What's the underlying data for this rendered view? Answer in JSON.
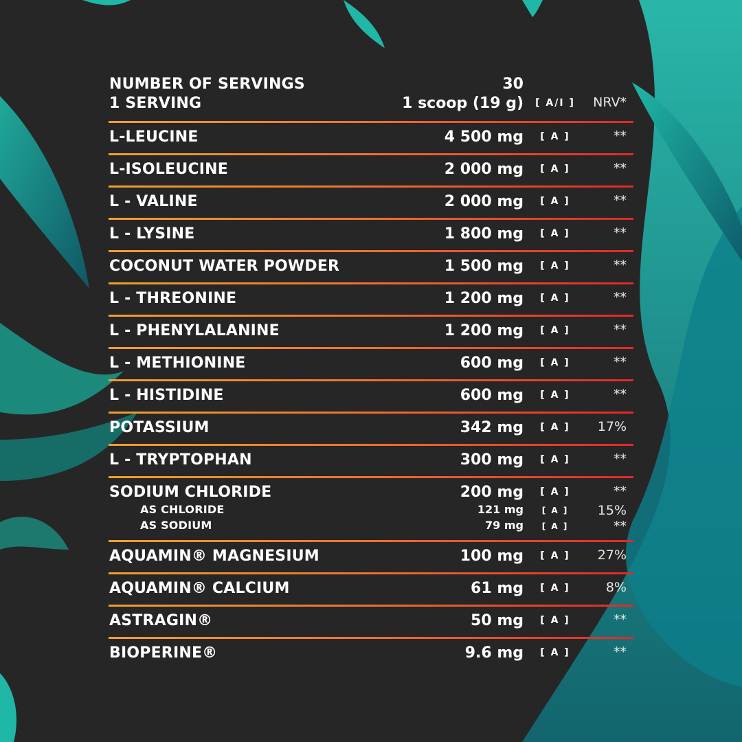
{
  "header": {
    "rows": [
      {
        "name": "NUMBER OF SERVINGS",
        "amount": "30"
      },
      {
        "name": "1 SERVING",
        "amount": "1 scoop (19 g)",
        "source": "[ A/I ]",
        "nrv": "NRV*"
      }
    ]
  },
  "table": {
    "rows": [
      {
        "name": "L-LEUCINE",
        "amount": "4 500 mg",
        "source": "[ A ]",
        "nrv": "**"
      },
      {
        "name": "L-ISOLEUCINE",
        "amount": "2 000 mg",
        "source": "[ A ]",
        "nrv": "**"
      },
      {
        "name": "L - VALINE",
        "amount": "2 000 mg",
        "source": "[ A ]",
        "nrv": "**"
      },
      {
        "name": "L - LYSINE",
        "amount": "1 800 mg",
        "source": "[ A ]",
        "nrv": "**"
      },
      {
        "name": "COCONUT WATER POWDER",
        "amount": "1 500 mg",
        "source": "[ A ]",
        "nrv": "**"
      },
      {
        "name": "L - THREONINE",
        "amount": "1 200 mg",
        "source": "[ A ]",
        "nrv": "**"
      },
      {
        "name": "L - PHENYLALANINE",
        "amount": "1 200 mg",
        "source": "[ A ]",
        "nrv": "**"
      },
      {
        "name": "L - METHIONINE",
        "amount": "600 mg",
        "source": "[ A ]",
        "nrv": "**"
      },
      {
        "name": "L - HISTIDINE",
        "amount": "600 mg",
        "source": "[ A ]",
        "nrv": "**"
      },
      {
        "name": "POTASSIUM",
        "amount": "342 mg",
        "source": "[ A ]",
        "nrv": "17%"
      },
      {
        "name": "L - TRYPTOPHAN",
        "amount": "300 mg",
        "source": "[ A ]",
        "nrv": "**"
      },
      {
        "name": "SODIUM CHLORIDE",
        "amount": "200 mg",
        "source": "[ A ]",
        "nrv": "**",
        "parts": [
          {
            "name": "AS CHLORIDE",
            "amount": "121 mg",
            "source": "[ A ]",
            "nrv": "15%"
          },
          {
            "name": "AS SODIUM",
            "amount": "79 mg",
            "source": "[ A ]",
            "nrv": "**"
          }
        ]
      },
      {
        "name": "AQUAMIN® MAGNESIUM",
        "amount": "100 mg",
        "source": "[ A ]",
        "nrv": "27%"
      },
      {
        "name": "AQUAMIN® CALCIUM",
        "amount": "61 mg",
        "source": "[ A ]",
        "nrv": "8%"
      },
      {
        "name": "ASTRAGIN®",
        "amount": "50 mg",
        "source": "[ A ]",
        "nrv": "**"
      },
      {
        "name": "BIOPERINE®",
        "amount": "9.6 mg",
        "source": "[ A ]",
        "nrv": "**"
      }
    ]
  }
}
